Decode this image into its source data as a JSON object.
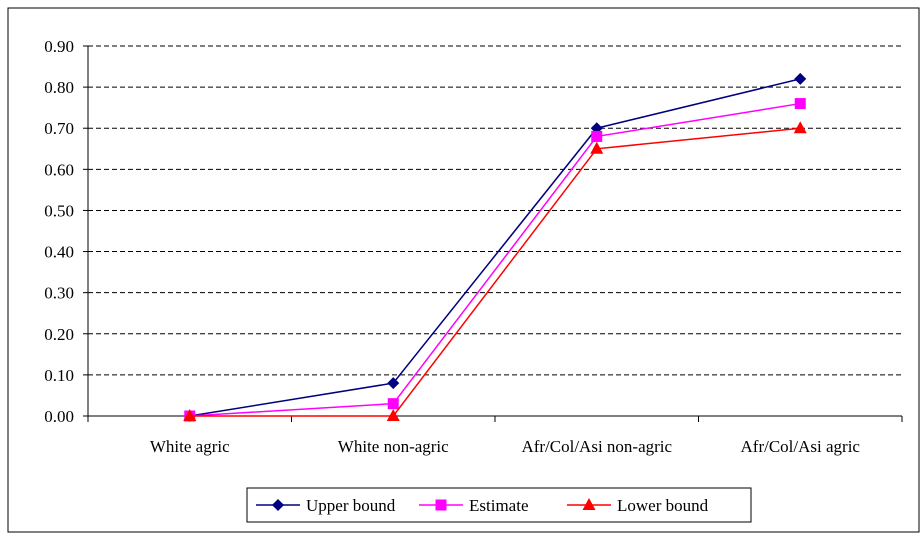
{
  "chart_data": {
    "type": "line",
    "title": "",
    "xlabel": "",
    "ylabel": "",
    "categories": [
      "White agric",
      "White non-agric",
      "Afr/Col/Asi non-agric",
      "Afr/Col/Asi agric"
    ],
    "ylim": [
      0,
      0.9
    ],
    "yticks": [
      "0.00",
      "0.10",
      "0.20",
      "0.30",
      "0.40",
      "0.50",
      "0.60",
      "0.70",
      "0.80",
      "0.90"
    ],
    "grid": "horizontal dashed",
    "legend_position": "bottom",
    "series": [
      {
        "name": "Upper bound",
        "color": "#000080",
        "marker": "diamond",
        "values": [
          0.0,
          0.08,
          0.7,
          0.82
        ]
      },
      {
        "name": "Estimate",
        "color": "#FF00FF",
        "marker": "square",
        "values": [
          0.0,
          0.03,
          0.68,
          0.76
        ]
      },
      {
        "name": "Lower bound",
        "color": "#FF0000",
        "marker": "triangle",
        "values": [
          0.0,
          0.0,
          0.65,
          0.7
        ]
      }
    ]
  }
}
